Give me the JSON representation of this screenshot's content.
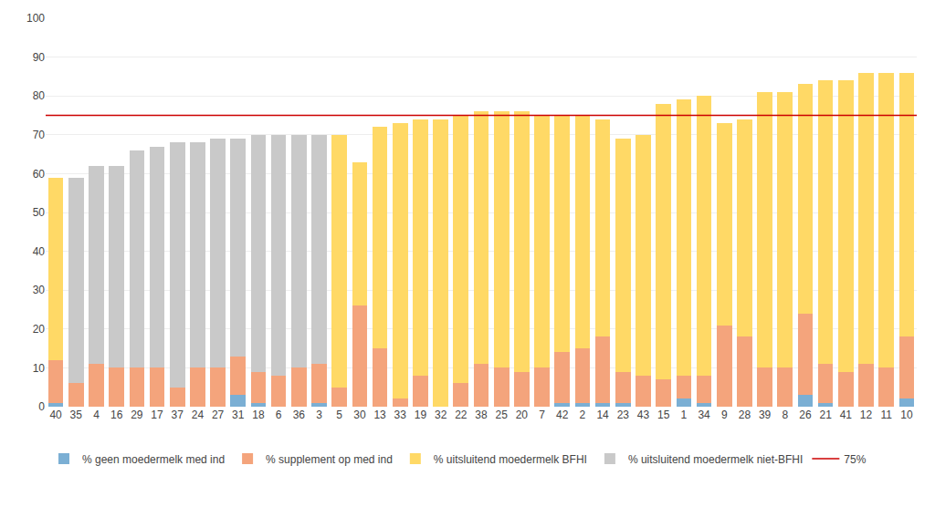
{
  "chart_data": {
    "type": "bar",
    "stacked": true,
    "categories": [
      "40",
      "35",
      "4",
      "16",
      "29",
      "17",
      "37",
      "24",
      "27",
      "31",
      "18",
      "6",
      "36",
      "3",
      "5",
      "30",
      "13",
      "33",
      "19",
      "32",
      "22",
      "38",
      "25",
      "20",
      "7",
      "42",
      "2",
      "14",
      "23",
      "43",
      "15",
      "1",
      "34",
      "9",
      "28",
      "39",
      "8",
      "26",
      "21",
      "41",
      "12",
      "11",
      "10"
    ],
    "series": [
      {
        "name": "% geen moedermelk med ind",
        "color": "#7BAFD4",
        "values": [
          1,
          0,
          0,
          0,
          0,
          0,
          0,
          0,
          0,
          3,
          1,
          0,
          0,
          1,
          0,
          0,
          0,
          0,
          0,
          0,
          0,
          0,
          0,
          0,
          0,
          1,
          1,
          1,
          1,
          0,
          0,
          2,
          1,
          0,
          0,
          0,
          0,
          3,
          1,
          0,
          0,
          0,
          2
        ]
      },
      {
        "name": "% supplement op med ind",
        "color": "#F4A47C",
        "values": [
          11,
          6,
          11,
          10,
          10,
          10,
          5,
          10,
          10,
          10,
          8,
          8,
          10,
          10,
          5,
          26,
          15,
          2,
          8,
          0,
          6,
          11,
          10,
          9,
          10,
          13,
          14,
          17,
          8,
          8,
          7,
          6,
          7,
          21,
          18,
          10,
          10,
          21,
          10,
          9,
          11,
          10,
          16
        ]
      },
      {
        "name": "% uitsluitend moedermelk BFHI",
        "color": "#FFD966",
        "values": [
          47,
          0,
          0,
          0,
          0,
          0,
          0,
          0,
          0,
          0,
          0,
          0,
          0,
          0,
          65,
          37,
          57,
          71,
          66,
          74,
          69,
          65,
          66,
          67,
          65,
          61,
          60,
          56,
          60,
          62,
          71,
          71,
          72,
          52,
          56,
          71,
          71,
          59,
          73,
          75,
          75,
          76,
          68
        ]
      },
      {
        "name": "% uitsluitend moedermelk niet-BFHI",
        "color": "#C9C9C9",
        "values": [
          0,
          53,
          51,
          52,
          56,
          57,
          63,
          58,
          59,
          56,
          61,
          62,
          60,
          59,
          0,
          0,
          0,
          0,
          0,
          0,
          0,
          0,
          0,
          0,
          0,
          0,
          0,
          0,
          0,
          0,
          0,
          0,
          0,
          0,
          0,
          0,
          0,
          0,
          0,
          0,
          0,
          0,
          0
        ]
      }
    ],
    "reference_lines": [
      {
        "y": 75,
        "name": "75%",
        "color": "#CC0000"
      }
    ],
    "ylim": [
      0,
      100
    ],
    "yticks": [
      0,
      10,
      20,
      30,
      40,
      50,
      60,
      70,
      80,
      90,
      100
    ],
    "grid": true,
    "legend": "bottom"
  }
}
